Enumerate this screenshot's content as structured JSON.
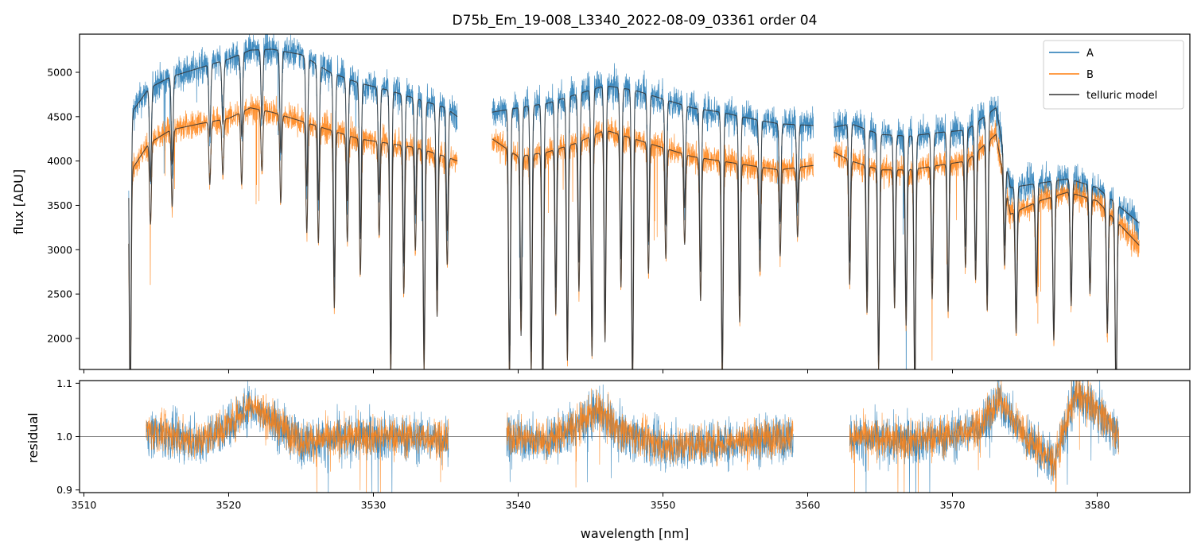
{
  "colors": {
    "A": "#1f77b4",
    "B": "#ff7f0e",
    "model": "#333333",
    "unity": "#555555"
  },
  "chart_data": {
    "type": "line",
    "title": "D75b_Em_19-008_L3340_2022-08-09_03361  order 04",
    "xlabel": "wavelength [nm]",
    "xlim": [
      3509.7,
      3586.4
    ],
    "xticks": [
      3510,
      3520,
      3530,
      3540,
      3550,
      3560,
      3570,
      3580
    ],
    "xtick_labels": [
      "3510",
      "3520",
      "3530",
      "3540",
      "3550",
      "3560",
      "3570",
      "3580"
    ],
    "top": {
      "ylabel": "flux [ADU]",
      "ylim": [
        1650,
        5430
      ],
      "yticks": [
        2000,
        2500,
        3000,
        3500,
        4000,
        4500,
        5000
      ],
      "ytick_labels": [
        "2000",
        "2500",
        "3000",
        "3500",
        "4000",
        "4500",
        "5000"
      ],
      "segments": [
        [
          3513.1,
          3535.8
        ],
        [
          3538.2,
          3560.4
        ],
        [
          3561.8,
          3582.9
        ]
      ],
      "envelope": {
        "x": [
          3513.1,
          3514.5,
          3516,
          3518,
          3520,
          3521.5,
          3523,
          3525,
          3527,
          3529,
          3531,
          3533,
          3535,
          3535.8,
          3538.2,
          3540,
          3542,
          3544,
          3546,
          3548,
          3550,
          3552,
          3554,
          3556,
          3558,
          3560.4,
          3561.8,
          3563,
          3565,
          3567,
          3569,
          3571,
          3573,
          3574,
          3576,
          3578,
          3580,
          3582.9
        ],
        "A": [
          4500,
          4820,
          4950,
          5050,
          5150,
          5250,
          5260,
          5200,
          5000,
          4880,
          4800,
          4700,
          4600,
          4500,
          4550,
          4600,
          4650,
          4750,
          4850,
          4800,
          4700,
          4600,
          4550,
          4480,
          4420,
          4400,
          4380,
          4420,
          4300,
          4280,
          4320,
          4350,
          4600,
          3700,
          3750,
          3800,
          3700,
          3300
        ],
        "B": [
          3850,
          4200,
          4350,
          4420,
          4480,
          4600,
          4550,
          4450,
          4350,
          4250,
          4200,
          4150,
          4050,
          4000,
          4250,
          4050,
          4100,
          4200,
          4350,
          4250,
          4150,
          4050,
          4000,
          3950,
          3900,
          3950,
          4100,
          4000,
          3900,
          3900,
          3950,
          4000,
          4300,
          3400,
          3550,
          3650,
          3550,
          3050
        ]
      },
      "lines": [
        3513.2,
        3514.6,
        3516.1,
        3518.7,
        3519.6,
        3520.9,
        3522.3,
        3523.6,
        3525.4,
        3526.2,
        3527.3,
        3528.2,
        3529.1,
        3530.4,
        3531.2,
        3532.1,
        3532.9,
        3533.5,
        3534.4,
        3535.1,
        3539.4,
        3540.2,
        3540.9,
        3541.7,
        3542.6,
        3543.4,
        3544.2,
        3545.1,
        3546.0,
        3547.1,
        3547.9,
        3549.0,
        3550.2,
        3551.5,
        3552.6,
        3554.1,
        3555.3,
        3556.7,
        3558.1,
        3559.3,
        3562.9,
        3564.1,
        3564.9,
        3566.0,
        3566.8,
        3567.4,
        3568.6,
        3569.7,
        3570.9,
        3571.6,
        3572.4,
        3573.6,
        3574.4,
        3575.8,
        3577.0,
        3578.2,
        3579.5,
        3580.7,
        3581.3
      ],
      "depths": [
        0.7,
        0.22,
        0.2,
        0.16,
        0.14,
        0.18,
        0.15,
        0.22,
        0.28,
        0.3,
        0.46,
        0.28,
        0.36,
        0.25,
        0.62,
        0.4,
        0.28,
        0.6,
        0.45,
        0.3,
        0.62,
        0.5,
        0.6,
        0.68,
        0.45,
        0.58,
        0.4,
        0.58,
        0.55,
        0.4,
        0.66,
        0.35,
        0.3,
        0.25,
        0.4,
        0.62,
        0.45,
        0.3,
        0.25,
        0.2,
        0.35,
        0.42,
        0.58,
        0.4,
        0.45,
        0.66,
        0.38,
        0.42,
        0.3,
        0.35,
        0.45,
        0.25,
        0.4,
        0.3,
        0.45,
        0.35,
        0.3,
        0.4,
        0.6
      ]
    },
    "bottom": {
      "ylabel": "residual",
      "ylim": [
        0.895,
        1.105
      ],
      "yticks": [
        0.9,
        1.0,
        1.1
      ],
      "ytick_labels": [
        "0.9",
        "1.0",
        "1.1"
      ],
      "hline": 1.0,
      "segments": [
        [
          3514.3,
          3535.2
        ],
        [
          3539.2,
          3559.0
        ],
        [
          3562.9,
          3581.5
        ]
      ],
      "trend_x": [
        3514.3,
        3516,
        3518,
        3520,
        3521.5,
        3523,
        3525,
        3530,
        3535.2,
        3539.2,
        3542,
        3544,
        3545.5,
        3547,
        3550,
        3555,
        3559.0,
        3562.9,
        3566,
        3570,
        3572,
        3573.2,
        3575,
        3577,
        3578.5,
        3580,
        3581.5
      ],
      "trend_y": [
        1.01,
        1.0,
        0.99,
        1.02,
        1.06,
        1.03,
        0.99,
        1.0,
        0.995,
        1.0,
        0.99,
        1.02,
        1.05,
        1.01,
        0.98,
        0.99,
        1.0,
        1.0,
        0.99,
        1.0,
        1.02,
        1.07,
        1.0,
        0.95,
        1.08,
        1.05,
        1.0
      ]
    },
    "legend": {
      "placement": "top-right",
      "entries": [
        "A",
        "B",
        "telluric model"
      ]
    }
  }
}
